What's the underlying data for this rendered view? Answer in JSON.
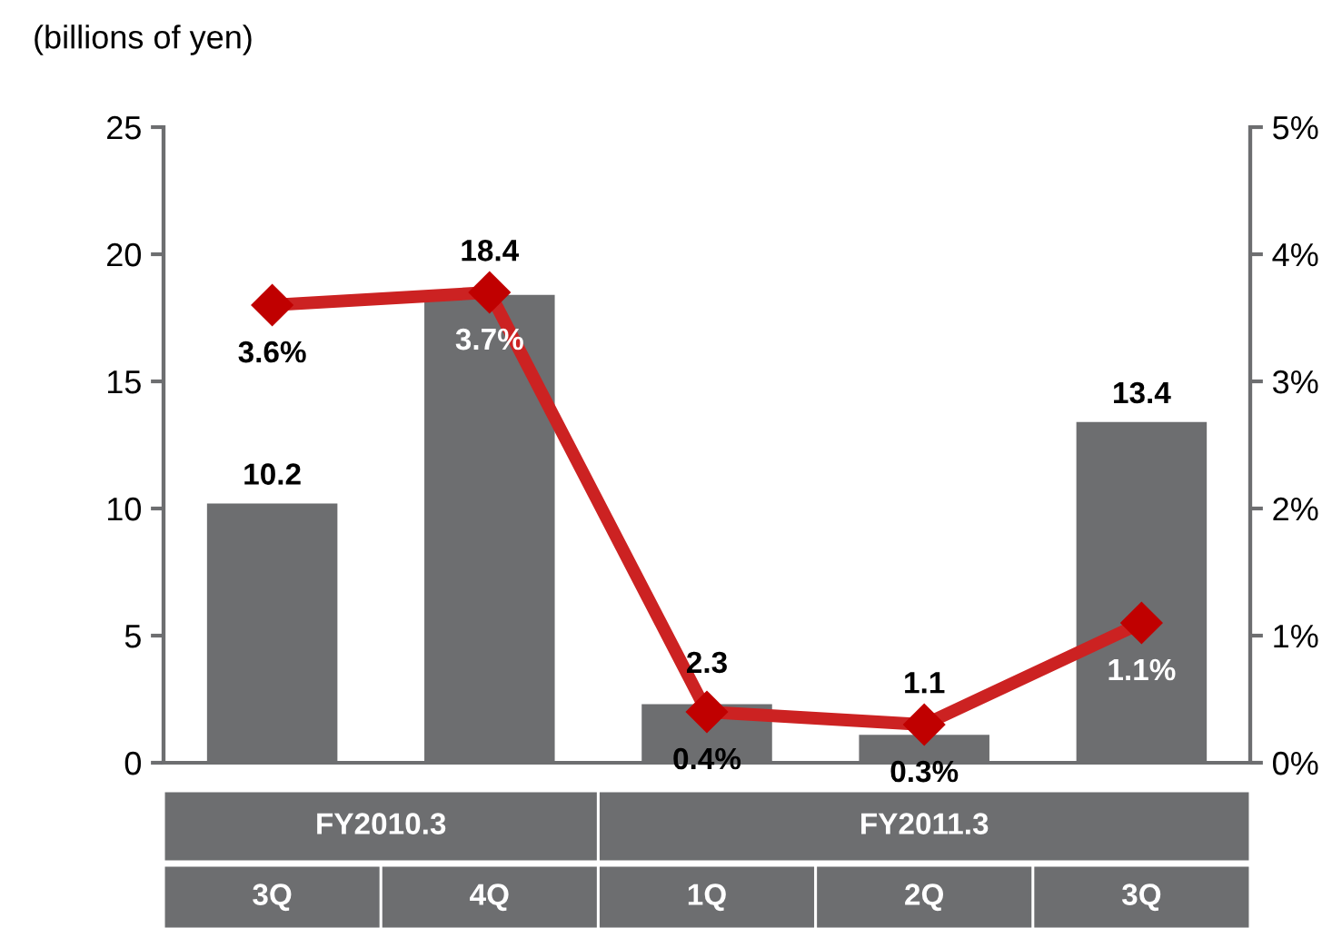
{
  "chart_data": {
    "type": "bar",
    "ylabel": "(billions of yen)",
    "categories": [
      "3Q",
      "4Q",
      "1Q",
      "2Q",
      "3Q"
    ],
    "annotations": [
      "FY2010.3",
      "FY2011.3"
    ],
    "series": [
      {
        "name": null,
        "color": "#6d6e70",
        "values": [
          10.2,
          18.4,
          2.3,
          1.1,
          13.4
        ]
      },
      {
        "name": null,
        "type": "line",
        "axis": "y2",
        "color": "#cc2222",
        "values": [
          3.6,
          3.7,
          0.4,
          0.3,
          1.1
        ],
        "value_labels": [
          "3.6%",
          "3.7%",
          "0.4%",
          "0.3%",
          "1.1%"
        ]
      }
    ],
    "data_labels": true,
    "marker": "diamond",
    "line_style": "solid",
    "ylim": [
      0,
      25
    ],
    "yticks": [
      0,
      5,
      10,
      15,
      20,
      25
    ],
    "y2lim": [
      0,
      5
    ],
    "y2ticks": [
      {
        "value": 0,
        "label": "0%"
      },
      {
        "value": 1,
        "label": "1%"
      },
      {
        "value": 2,
        "label": "2%"
      },
      {
        "value": 3,
        "label": "3%"
      },
      {
        "value": 4,
        "label": "4%"
      },
      {
        "value": 5,
        "label": "5%"
      }
    ],
    "grid": false
  }
}
